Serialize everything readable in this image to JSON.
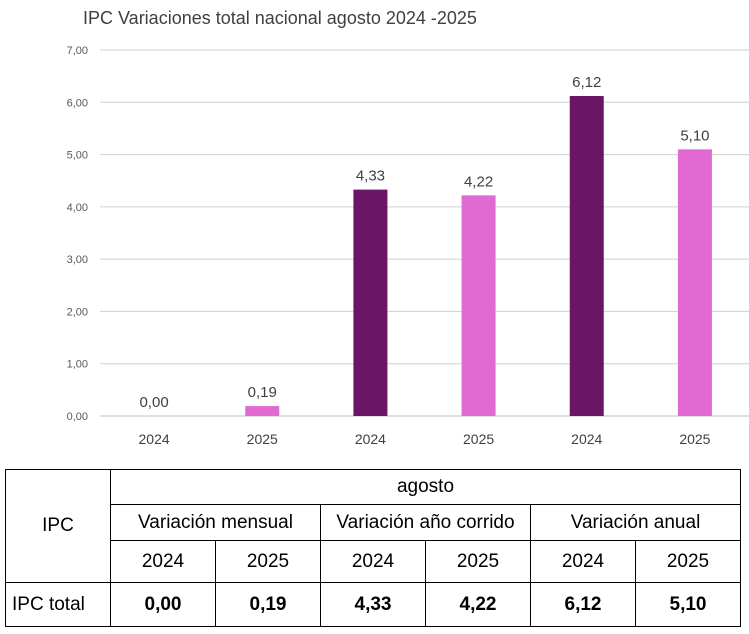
{
  "chart_data": {
    "type": "bar",
    "title": "IPC Variaciones total nacional agosto  2024 -2025",
    "categories": [
      "2024",
      "2025",
      "2024",
      "2025",
      "2024",
      "2025"
    ],
    "values": [
      0.0,
      0.19,
      4.33,
      4.22,
      6.12,
      5.1
    ],
    "data_labels": [
      "0,00",
      "0,19",
      "4,33",
      "4,22",
      "6,12",
      "5,10"
    ],
    "yticks": [
      "0,00",
      "1,00",
      "2,00",
      "3,00",
      "4,00",
      "5,00",
      "6,00",
      "7,00"
    ],
    "ylim": [
      0,
      7
    ],
    "grid": true,
    "legend": "none",
    "colors": {
      "2024": "#6b1566",
      "2025": "#e06ad2",
      "grid": "#d0d0d0",
      "axis": "#bfbfbf"
    }
  },
  "table": {
    "row_header": "IPC",
    "period": "agosto",
    "groups": [
      "Variación mensual",
      "Variación año corrido",
      "Variación anual"
    ],
    "years": [
      "2024",
      "2025",
      "2024",
      "2025",
      "2024",
      "2025"
    ],
    "row_label": "IPC total",
    "values": [
      "0,00",
      "0,19",
      "4,33",
      "4,22",
      "6,12",
      "5,10"
    ]
  }
}
